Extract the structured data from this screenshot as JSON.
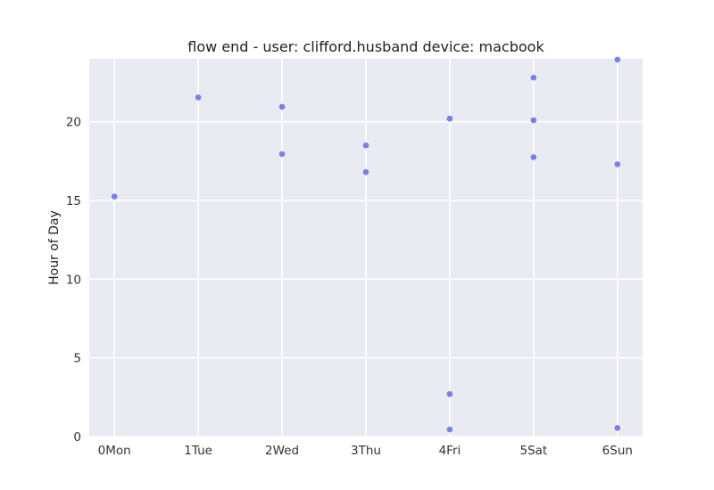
{
  "chart_data": {
    "type": "scatter",
    "title": "flow end - user: clifford.husband device: macbook",
    "xlabel": "",
    "ylabel": "Hour of Day",
    "categories": [
      "0Mon",
      "1Tue",
      "2Wed",
      "3Thu",
      "4Fri",
      "5Sat",
      "6Sun"
    ],
    "xlim": [
      -0.3,
      6.3
    ],
    "ylim": [
      0,
      24
    ],
    "yticks": [
      0,
      5,
      10,
      15,
      20
    ],
    "grid": true,
    "point_color": "#6c72e8",
    "background_color": "#eaeaf2",
    "grid_color": "#ffffff",
    "points": [
      {
        "x": 0,
        "y": 15.25
      },
      {
        "x": 1,
        "y": 21.55
      },
      {
        "x": 2,
        "y": 20.95
      },
      {
        "x": 2,
        "y": 17.95
      },
      {
        "x": 3,
        "y": 18.5
      },
      {
        "x": 3,
        "y": 16.8
      },
      {
        "x": 4,
        "y": 20.2
      },
      {
        "x": 4,
        "y": 2.7
      },
      {
        "x": 4,
        "y": 0.45
      },
      {
        "x": 5,
        "y": 22.8
      },
      {
        "x": 5,
        "y": 20.1
      },
      {
        "x": 5,
        "y": 17.75
      },
      {
        "x": 6,
        "y": 23.95
      },
      {
        "x": 6,
        "y": 17.3
      },
      {
        "x": 6,
        "y": 0.55
      }
    ]
  }
}
